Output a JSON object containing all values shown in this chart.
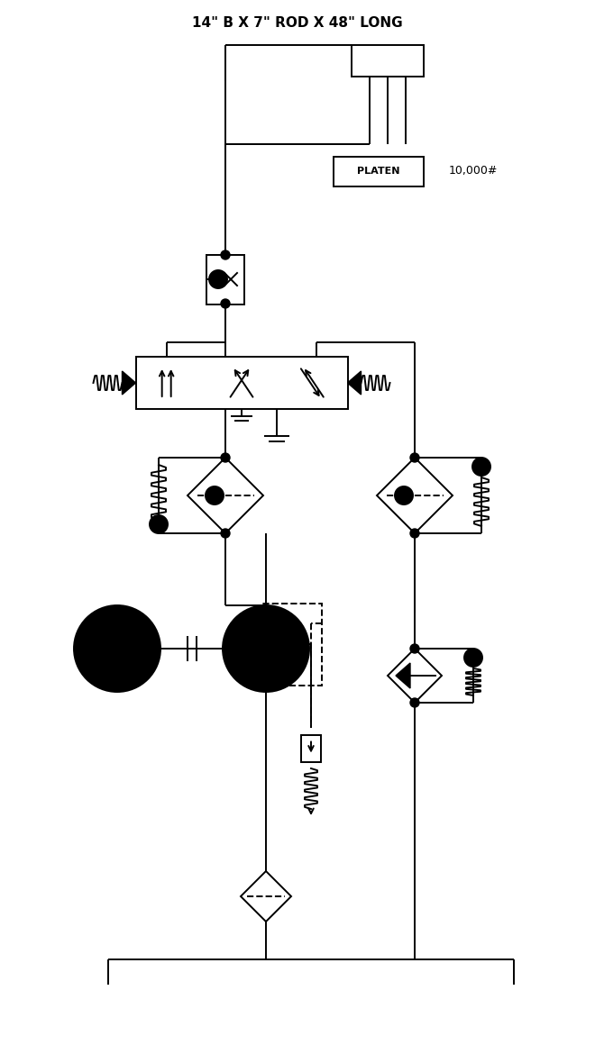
{
  "title": "14\" B X 7\" ROD X 48\" LONG",
  "title_fontsize": 11,
  "line_color": "#000000",
  "bg_color": "#ffffff",
  "lw": 1.4
}
